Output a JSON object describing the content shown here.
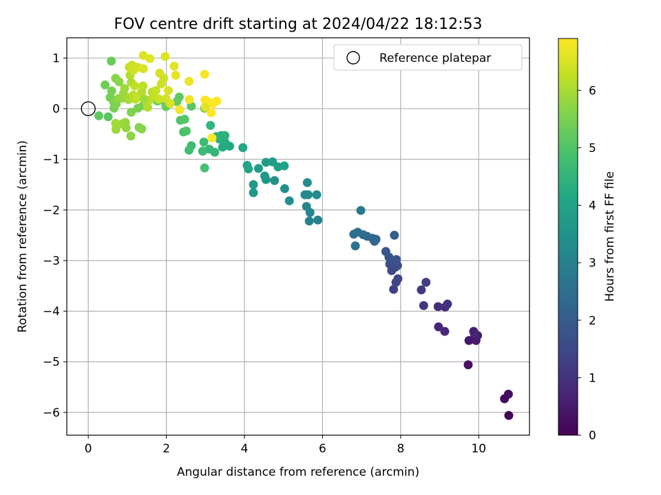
{
  "chart_data": {
    "type": "scatter",
    "title": "FOV centre drift starting at 2024/04/22 18:12:53",
    "xlabel": "Angular distance from reference (arcmin)",
    "ylabel": "Rotation from reference (arcmin)",
    "colorbar_label": "Hours from first FF file",
    "xlim": [
      -0.55,
      11.3
    ],
    "ylim": [
      -6.45,
      1.4
    ],
    "xticks": [
      0,
      2,
      4,
      6,
      8,
      10
    ],
    "yticks": [
      -6,
      -5,
      -4,
      -3,
      -2,
      -1,
      0,
      1
    ],
    "colorbar_range": [
      0,
      6.9
    ],
    "colorbar_ticks": [
      0,
      1,
      2,
      3,
      4,
      5,
      6
    ],
    "colormap": "viridis",
    "grid": true,
    "legend": {
      "position": "top-right",
      "entries": [
        {
          "label": "Reference platepar",
          "marker": "hollow-circle",
          "x": 0,
          "y": 0
        }
      ]
    },
    "series": [
      {
        "points": [
          [
            10.77,
            -6.06,
            0.05
          ],
          [
            10.66,
            -5.73,
            0.15
          ],
          [
            10.76,
            -5.64,
            0.25
          ],
          [
            9.73,
            -5.06,
            0.35
          ],
          [
            9.75,
            -4.58,
            0.45
          ],
          [
            9.93,
            -4.58,
            0.5
          ],
          [
            9.97,
            -4.48,
            0.55
          ],
          [
            9.87,
            -4.4,
            0.6
          ],
          [
            9.89,
            -4.45,
            0.65
          ],
          [
            8.97,
            -4.31,
            0.75
          ],
          [
            9.13,
            -4.4,
            0.8
          ],
          [
            8.96,
            -3.91,
            0.9
          ],
          [
            9.14,
            -3.92,
            0.95
          ],
          [
            9.2,
            -3.86,
            1.0
          ],
          [
            8.59,
            -3.89,
            1.1
          ],
          [
            8.53,
            -3.58,
            1.15
          ],
          [
            8.65,
            -3.43,
            1.2
          ],
          [
            7.82,
            -3.57,
            1.3
          ],
          [
            7.88,
            -3.43,
            1.4
          ],
          [
            7.93,
            -3.36,
            1.45
          ],
          [
            7.77,
            -3.2,
            1.5
          ],
          [
            7.87,
            -3.13,
            1.55
          ],
          [
            7.72,
            -3.07,
            1.6
          ],
          [
            7.92,
            -3.1,
            1.65
          ],
          [
            7.8,
            -3.0,
            1.7
          ],
          [
            7.89,
            -2.98,
            1.75
          ],
          [
            7.7,
            -2.93,
            1.8
          ],
          [
            7.62,
            -2.82,
            1.85
          ],
          [
            7.84,
            -2.5,
            2.0
          ],
          [
            7.33,
            -2.62,
            2.2
          ],
          [
            7.37,
            -2.58,
            2.25
          ],
          [
            7.28,
            -2.56,
            2.3
          ],
          [
            7.14,
            -2.52,
            2.4
          ],
          [
            7.04,
            -2.49,
            2.45
          ],
          [
            6.9,
            -2.44,
            2.5
          ],
          [
            6.8,
            -2.48,
            2.55
          ],
          [
            6.84,
            -2.71,
            2.6
          ],
          [
            6.98,
            -2.01,
            2.8
          ],
          [
            5.88,
            -2.2,
            3.0
          ],
          [
            5.66,
            -2.22,
            3.05
          ],
          [
            5.68,
            -2.05,
            3.1
          ],
          [
            5.59,
            -1.93,
            3.15
          ],
          [
            5.55,
            -1.7,
            3.2
          ],
          [
            5.63,
            -1.7,
            3.25
          ],
          [
            5.61,
            -1.46,
            3.3
          ],
          [
            5.85,
            -1.7,
            3.35
          ],
          [
            5.15,
            -1.82,
            3.4
          ],
          [
            5.03,
            -1.58,
            3.45
          ],
          [
            4.77,
            -1.42,
            3.5
          ],
          [
            4.55,
            -1.4,
            3.55
          ],
          [
            4.52,
            -1.33,
            3.6
          ],
          [
            4.23,
            -1.5,
            3.65
          ],
          [
            4.23,
            -1.66,
            3.7
          ],
          [
            4.36,
            -1.18,
            3.75
          ],
          [
            4.55,
            -1.06,
            3.8
          ],
          [
            4.72,
            -1.05,
            3.85
          ],
          [
            4.86,
            -1.15,
            3.9
          ],
          [
            5.02,
            -1.13,
            3.95
          ],
          [
            4.07,
            -1.12,
            4.0
          ],
          [
            4.1,
            -1.19,
            4.05
          ],
          [
            3.96,
            -0.77,
            4.1
          ],
          [
            3.62,
            -0.74,
            4.15
          ],
          [
            3.44,
            -0.76,
            4.2
          ],
          [
            3.5,
            -0.66,
            4.25
          ],
          [
            3.36,
            -0.6,
            4.3
          ],
          [
            3.41,
            -0.53,
            4.35
          ],
          [
            3.5,
            -0.53,
            4.4
          ],
          [
            3.28,
            -0.55,
            4.45
          ],
          [
            3.13,
            -0.33,
            4.5
          ],
          [
            3.24,
            -0.86,
            4.55
          ],
          [
            3.1,
            -0.8,
            4.6
          ],
          [
            2.93,
            -0.84,
            4.65
          ],
          [
            2.96,
            -0.66,
            4.7
          ],
          [
            2.64,
            -0.73,
            4.75
          ],
          [
            2.58,
            -0.82,
            4.8
          ],
          [
            2.98,
            -1.17,
            4.85
          ],
          [
            2.44,
            -0.46,
            4.9
          ],
          [
            2.51,
            -0.44,
            4.95
          ],
          [
            2.36,
            -0.23,
            5.0
          ],
          [
            2.47,
            -0.21,
            5.05
          ],
          [
            2.64,
            0.05,
            5.1
          ],
          [
            2.98,
            0.01,
            5.15
          ],
          [
            2.33,
            0.23,
            5.2
          ],
          [
            2.27,
            0.14,
            5.25
          ],
          [
            1.99,
            0.04,
            5.3
          ],
          [
            1.96,
            0.13,
            5.35
          ],
          [
            1.77,
            0.15,
            5.4
          ],
          [
            1.4,
            0.06,
            5.45
          ],
          [
            1.27,
            0.01,
            5.5
          ],
          [
            1.1,
            -0.07,
            5.55
          ],
          [
            1.3,
            -0.37,
            5.6
          ],
          [
            1.37,
            -0.4,
            5.65
          ],
          [
            1.09,
            -0.54,
            5.7
          ],
          [
            0.97,
            -0.38,
            5.75
          ],
          [
            0.95,
            -0.27,
            5.8
          ],
          [
            0.87,
            -0.3,
            5.85
          ],
          [
            0.71,
            -0.41,
            5.9
          ],
          [
            0.7,
            -0.29,
            5.95
          ],
          [
            0.51,
            -0.16,
            5.1
          ],
          [
            0.27,
            -0.14,
            5.2
          ],
          [
            0.59,
            0.94,
            5.3
          ],
          [
            0.43,
            0.47,
            5.35
          ],
          [
            0.56,
            0.22,
            5.4
          ],
          [
            0.6,
            0.35,
            5.45
          ],
          [
            0.66,
            0.01,
            5.5
          ],
          [
            0.65,
            0.13,
            5.55
          ],
          [
            0.72,
            0.1,
            5.6
          ],
          [
            0.7,
            0.6,
            5.65
          ],
          [
            0.79,
            0.53,
            5.7
          ],
          [
            0.77,
            0.2,
            5.75
          ],
          [
            0.88,
            0.21,
            5.8
          ],
          [
            0.9,
            0.3,
            5.85
          ],
          [
            0.93,
            0.4,
            5.9
          ],
          [
            1.03,
            0.18,
            5.95
          ],
          [
            1.05,
            0.22,
            6.0
          ],
          [
            1.1,
            0.52,
            6.05
          ],
          [
            1.07,
            0.66,
            6.1
          ],
          [
            1.15,
            0.27,
            6.15
          ],
          [
            1.21,
            0.19,
            6.2
          ],
          [
            1.19,
            0.45,
            6.25
          ],
          [
            1.26,
            0.24,
            6.3
          ],
          [
            1.37,
            0.33,
            6.1
          ],
          [
            1.4,
            0.45,
            6.2
          ],
          [
            1.47,
            0.15,
            6.0
          ],
          [
            1.52,
            0.03,
            6.1
          ],
          [
            1.56,
            0.17,
            6.2
          ],
          [
            1.64,
            0.33,
            6.15
          ],
          [
            1.67,
            0.25,
            6.25
          ],
          [
            1.73,
            0.36,
            6.3
          ],
          [
            1.81,
            0.19,
            6.35
          ],
          [
            1.87,
            0.49,
            6.4
          ],
          [
            1.93,
            0.6,
            6.4
          ],
          [
            1.83,
            0.7,
            6.45
          ],
          [
            1.99,
            0.2,
            6.45
          ],
          [
            2.05,
            0.36,
            6.5
          ],
          [
            2.1,
            0.1,
            6.5
          ],
          [
            1.05,
            0.82,
            6.3
          ],
          [
            1.12,
            0.86,
            6.35
          ],
          [
            1.16,
            0.76,
            6.4
          ],
          [
            1.27,
            0.82,
            6.45
          ],
          [
            1.41,
            0.79,
            6.5
          ],
          [
            1.41,
            1.05,
            6.55
          ],
          [
            1.58,
            0.99,
            6.6
          ],
          [
            1.97,
            1.03,
            6.55
          ],
          [
            2.2,
            0.84,
            6.6
          ],
          [
            2.24,
            0.66,
            6.65
          ],
          [
            2.58,
            0.54,
            6.7
          ],
          [
            2.59,
            0.18,
            6.75
          ],
          [
            2.34,
            -0.02,
            6.8
          ],
          [
            2.98,
            0.68,
            6.85
          ],
          [
            2.99,
            0.17,
            6.8
          ],
          [
            3.1,
            0.13,
            6.85
          ],
          [
            3.19,
            0.1,
            6.9
          ],
          [
            3.29,
            0.15,
            6.88
          ],
          [
            3.15,
            -0.08,
            6.9
          ],
          [
            3.17,
            -0.58,
            6.88
          ],
          [
            3.0,
            0.03,
            6.6
          ],
          [
            1.43,
            0.19,
            5.9
          ]
        ]
      }
    ]
  }
}
